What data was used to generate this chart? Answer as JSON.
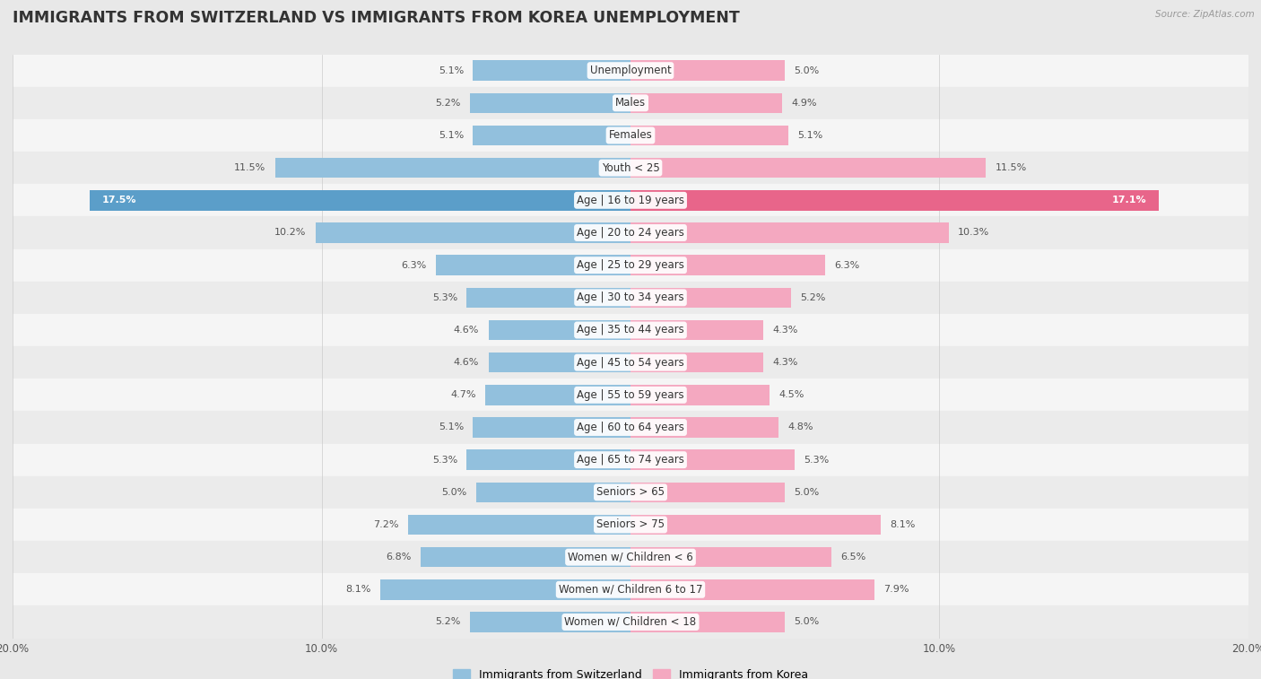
{
  "title": "IMMIGRANTS FROM SWITZERLAND VS IMMIGRANTS FROM KOREA UNEMPLOYMENT",
  "source": "Source: ZipAtlas.com",
  "categories": [
    "Unemployment",
    "Males",
    "Females",
    "Youth < 25",
    "Age | 16 to 19 years",
    "Age | 20 to 24 years",
    "Age | 25 to 29 years",
    "Age | 30 to 34 years",
    "Age | 35 to 44 years",
    "Age | 45 to 54 years",
    "Age | 55 to 59 years",
    "Age | 60 to 64 years",
    "Age | 65 to 74 years",
    "Seniors > 65",
    "Seniors > 75",
    "Women w/ Children < 6",
    "Women w/ Children 6 to 17",
    "Women w/ Children < 18"
  ],
  "switzerland_values": [
    5.1,
    5.2,
    5.1,
    11.5,
    17.5,
    10.2,
    6.3,
    5.3,
    4.6,
    4.6,
    4.7,
    5.1,
    5.3,
    5.0,
    7.2,
    6.8,
    8.1,
    5.2
  ],
  "korea_values": [
    5.0,
    4.9,
    5.1,
    11.5,
    17.1,
    10.3,
    6.3,
    5.2,
    4.3,
    4.3,
    4.5,
    4.8,
    5.3,
    5.0,
    8.1,
    6.5,
    7.9,
    5.0
  ],
  "switzerland_color": "#92c0dd",
  "korea_color": "#f4a8c0",
  "switzerland_highlight_color": "#5b9ec9",
  "korea_highlight_color": "#e8658a",
  "background_color": "#e8e8e8",
  "row_bg_colors": [
    "#f5f5f5",
    "#ebebeb"
  ],
  "max_value": 20.0,
  "legend_switzerland": "Immigrants from Switzerland",
  "legend_korea": "Immigrants from Korea",
  "title_fontsize": 12.5,
  "label_fontsize": 8.5,
  "value_fontsize": 8.0,
  "axis_tick_fontsize": 8.5
}
